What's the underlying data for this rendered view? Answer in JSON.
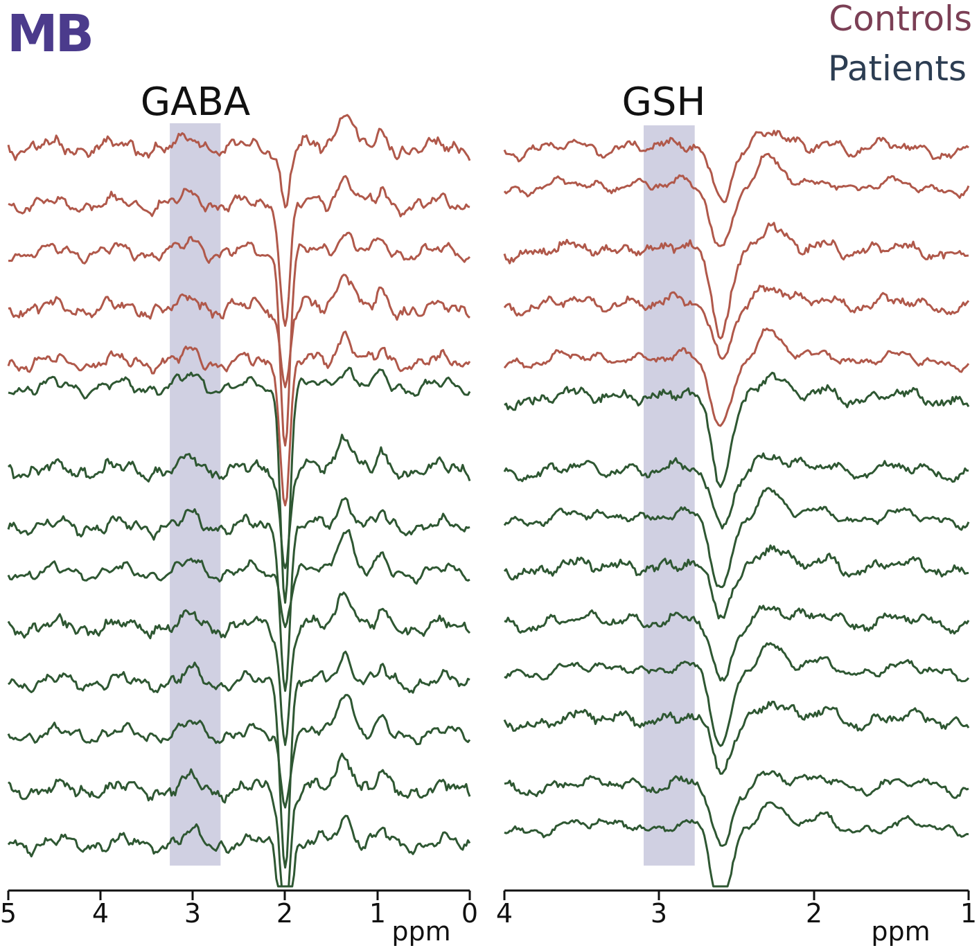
{
  "panel_label": "MB",
  "legend": {
    "controls": "Controls",
    "patients": "Patients",
    "controls_color": "#b0584a",
    "patients_color": "#2e5732",
    "controls_label_color": "#7b3f55",
    "patients_label_color": "#2c3d52"
  },
  "chart_data": [
    {
      "type": "line",
      "title": "GABA",
      "xlabel": "ppm",
      "x_reversed": true,
      "xlim": [
        5,
        0
      ],
      "x_ticks": [
        "5",
        "4",
        "3",
        "2",
        "1",
        "0"
      ],
      "highlight_band": {
        "x0": 3.25,
        "x1": 2.7,
        "color": "#d0d0e2"
      },
      "series_groups": [
        {
          "group": "Controls",
          "count": 5
        },
        {
          "group": "Patients",
          "count": 9
        }
      ]
    },
    {
      "type": "line",
      "title": "GSH",
      "xlabel": "ppm",
      "x_reversed": true,
      "xlim": [
        4,
        1
      ],
      "x_ticks": [
        "4",
        "3",
        "2",
        "1"
      ],
      "highlight_band": {
        "x0": 3.1,
        "x1": 2.77,
        "color": "#d0d0e2"
      },
      "series_groups": [
        {
          "group": "Controls",
          "count": 5
        },
        {
          "group": "Patients",
          "count": 9
        }
      ]
    }
  ]
}
